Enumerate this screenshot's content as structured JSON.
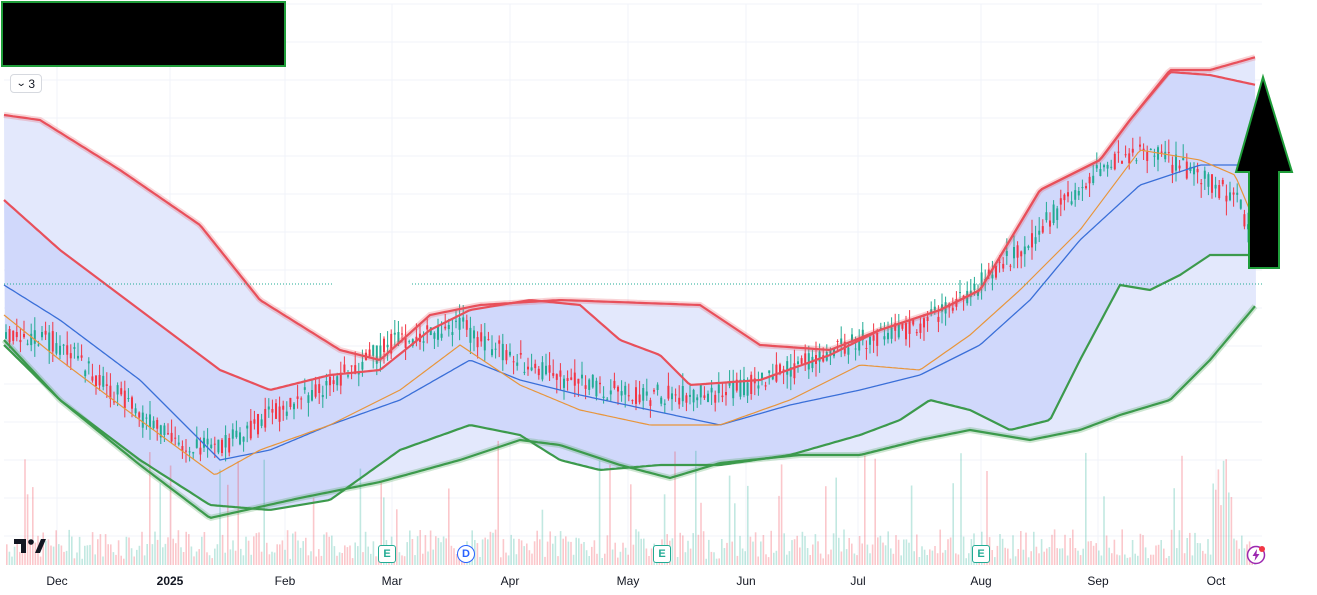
{
  "toolbar": {
    "collapse_label": "3",
    "collapse_icon": "chevron-down-icon"
  },
  "events": [
    {
      "type": "E",
      "label": "E",
      "name": "earnings-marker-mar"
    },
    {
      "type": "D",
      "label": "D",
      "name": "dividend-marker-apr"
    },
    {
      "type": "E",
      "label": "E",
      "name": "earnings-marker-may"
    },
    {
      "type": "E",
      "label": "E",
      "name": "earnings-marker-aug"
    }
  ],
  "colors": {
    "upper_band": "#e8505b",
    "lower_band": "#3c9a4c",
    "basis": "#3a6fd8",
    "orange": "#e8953a",
    "fill": "#c9d3fb",
    "outer_fill": "#e3e8fc",
    "candle_up": "#22ab94",
    "candle_down": "#f23645",
    "arrow": "#000000",
    "arrow_border": "#1f9d3a"
  },
  "chart_data": {
    "type": "candlestick",
    "x_ticks": [
      "Dec",
      "2025",
      "Feb",
      "Mar",
      "Apr",
      "May",
      "Jun",
      "Jul",
      "Aug",
      "Sep",
      "Oct"
    ],
    "bold_ticks": [
      "2025"
    ],
    "price_trend": [
      {
        "t": "Dec",
        "v": 0.38
      },
      {
        "t": "2025",
        "v": 0.1
      },
      {
        "t": "Feb",
        "v": 0.38
      },
      {
        "t": "Mar",
        "v": 0.62
      },
      {
        "t": "Apr",
        "v": 0.42
      },
      {
        "t": "May",
        "v": 0.36
      },
      {
        "t": "Jun",
        "v": 0.41
      },
      {
        "t": "Jul",
        "v": 0.5
      },
      {
        "t": "Aug",
        "v": 0.72
      },
      {
        "t": "Sep",
        "v": 0.95
      },
      {
        "t": "Oct",
        "v": 0.6
      }
    ],
    "grid": true,
    "volume": true,
    "indicators": [
      "bollinger-bands-outer",
      "bollinger-bands-inner",
      "moving-average"
    ]
  },
  "annotations": {
    "arrow_direction": "up",
    "redaction_box": true
  }
}
